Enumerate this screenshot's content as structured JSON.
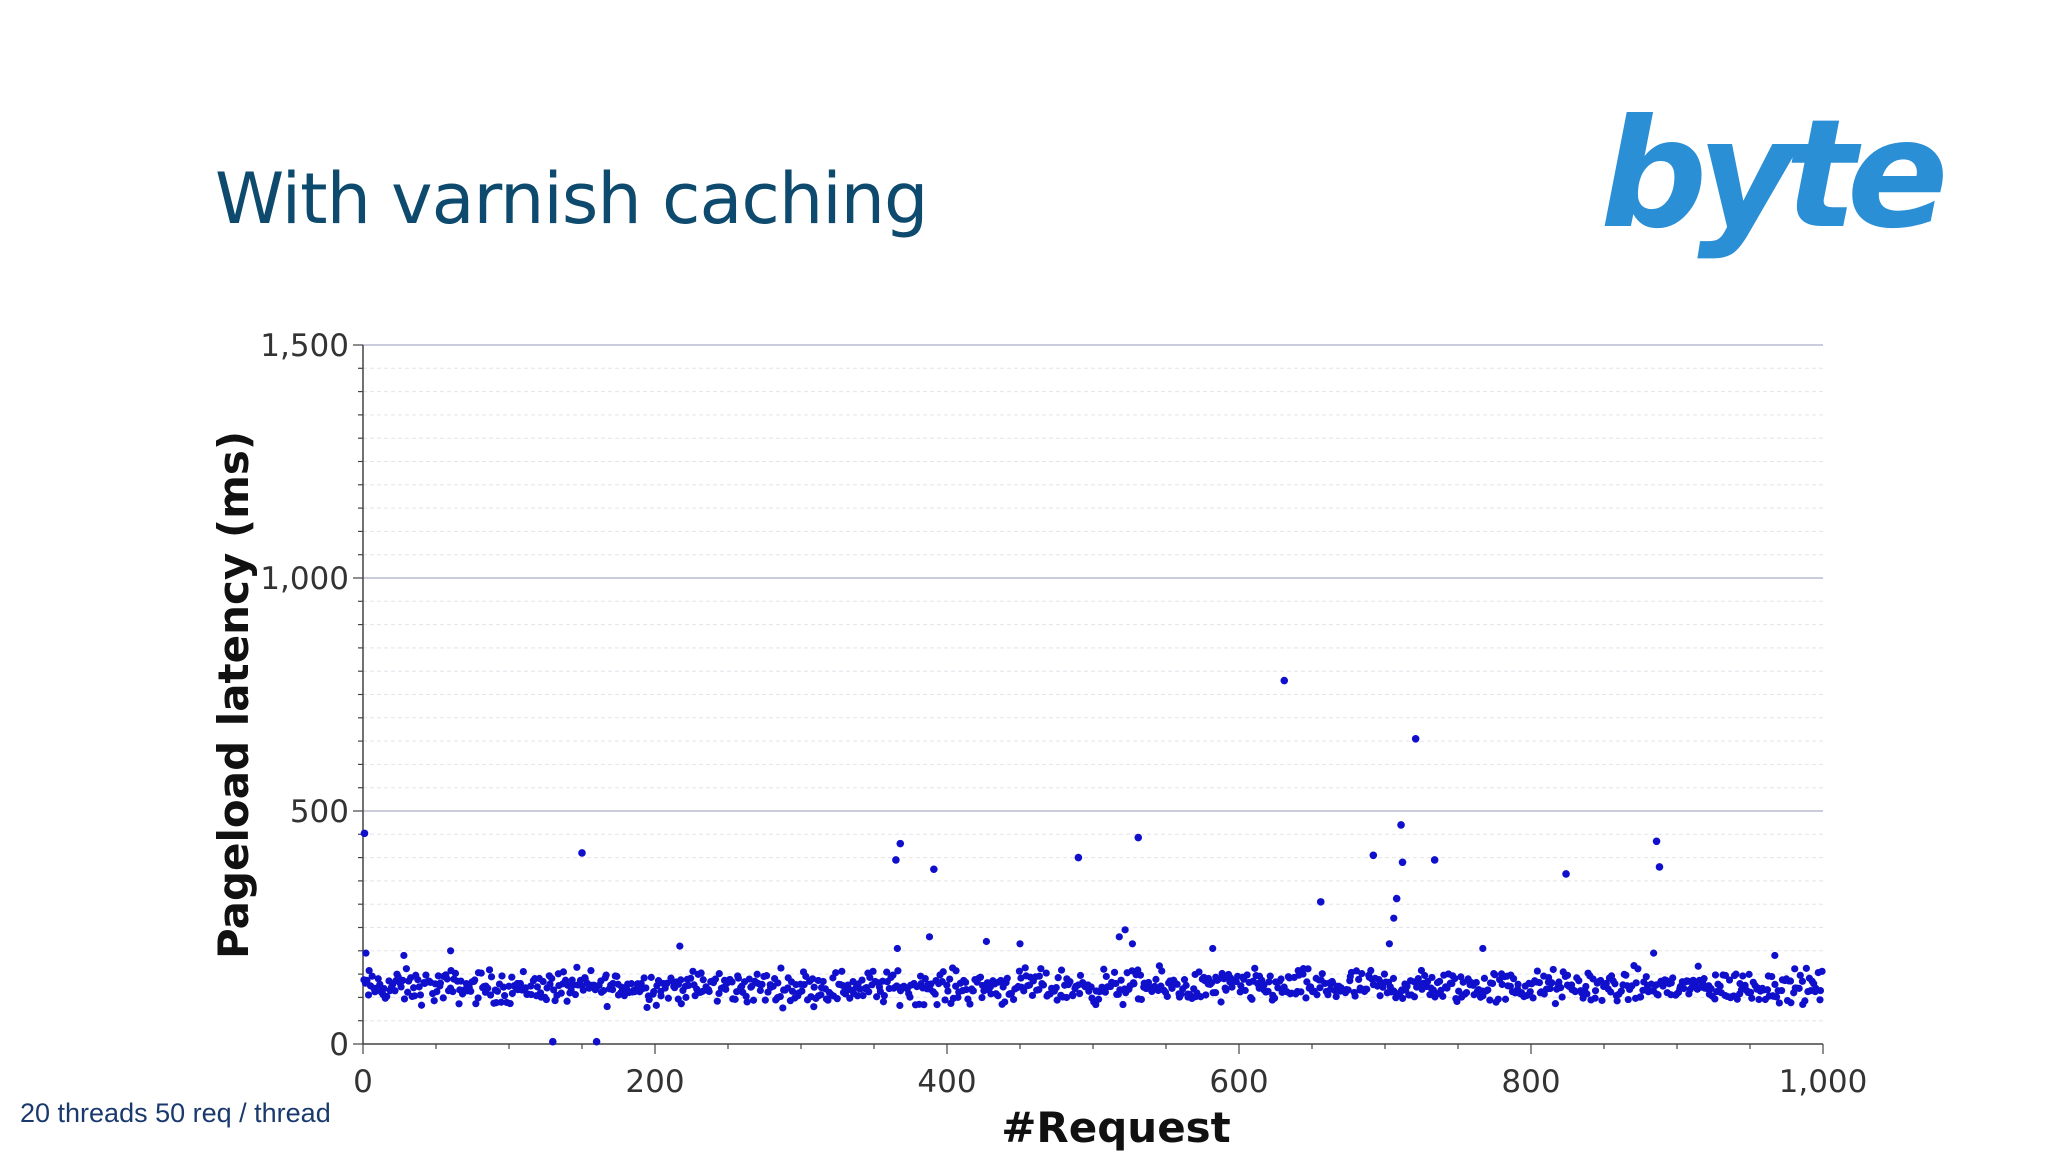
{
  "slide": {
    "title": "With varnish caching",
    "logo_text": "byte",
    "footnote": "20 threads 50 req / thread"
  },
  "colors": {
    "title": "#0e4a6e",
    "logo": "#2b8fd6",
    "points": "#1010cc",
    "major_grid": "#b8bcd0",
    "minor_grid": "#e4e4ec"
  },
  "chart_data": {
    "type": "scatter",
    "xlabel": "#Request",
    "ylabel": "Pageload latency (ms)",
    "xlim": [
      0,
      1000
    ],
    "ylim": [
      0,
      1500
    ],
    "x_ticks": [
      0,
      200,
      400,
      600,
      800,
      1000
    ],
    "x_tick_labels": [
      "0",
      "200",
      "400",
      "600",
      "800",
      "1,000"
    ],
    "y_ticks": [
      0,
      500,
      1000,
      1500
    ],
    "y_tick_labels": [
      "0",
      "500",
      "1,000",
      "1,500"
    ],
    "grid": true,
    "outliers": [
      {
        "x": 1,
        "y": 452
      },
      {
        "x": 150,
        "y": 410
      },
      {
        "x": 365,
        "y": 395
      },
      {
        "x": 368,
        "y": 430
      },
      {
        "x": 391,
        "y": 375
      },
      {
        "x": 490,
        "y": 400
      },
      {
        "x": 531,
        "y": 443
      },
      {
        "x": 631,
        "y": 780
      },
      {
        "x": 656,
        "y": 305
      },
      {
        "x": 692,
        "y": 405
      },
      {
        "x": 708,
        "y": 312
      },
      {
        "x": 711,
        "y": 470
      },
      {
        "x": 712,
        "y": 390
      },
      {
        "x": 721,
        "y": 655
      },
      {
        "x": 734,
        "y": 395
      },
      {
        "x": 824,
        "y": 365
      },
      {
        "x": 886,
        "y": 435
      },
      {
        "x": 888,
        "y": 380
      },
      {
        "x": 130,
        "y": 5
      },
      {
        "x": 160,
        "y": 5
      }
    ],
    "elevated": [
      {
        "x": 2,
        "y": 195
      },
      {
        "x": 28,
        "y": 190
      },
      {
        "x": 60,
        "y": 200
      },
      {
        "x": 217,
        "y": 210
      },
      {
        "x": 366,
        "y": 205
      },
      {
        "x": 388,
        "y": 230
      },
      {
        "x": 427,
        "y": 220
      },
      {
        "x": 450,
        "y": 215
      },
      {
        "x": 518,
        "y": 230
      },
      {
        "x": 522,
        "y": 245
      },
      {
        "x": 527,
        "y": 215
      },
      {
        "x": 582,
        "y": 205
      },
      {
        "x": 703,
        "y": 215
      },
      {
        "x": 706,
        "y": 270
      },
      {
        "x": 767,
        "y": 205
      },
      {
        "x": 884,
        "y": 195
      },
      {
        "x": 967,
        "y": 190
      }
    ],
    "bulk": {
      "count": 1000,
      "x_range": [
        0,
        1000
      ],
      "y_range": [
        70,
        175
      ],
      "median_y": 115
    }
  }
}
